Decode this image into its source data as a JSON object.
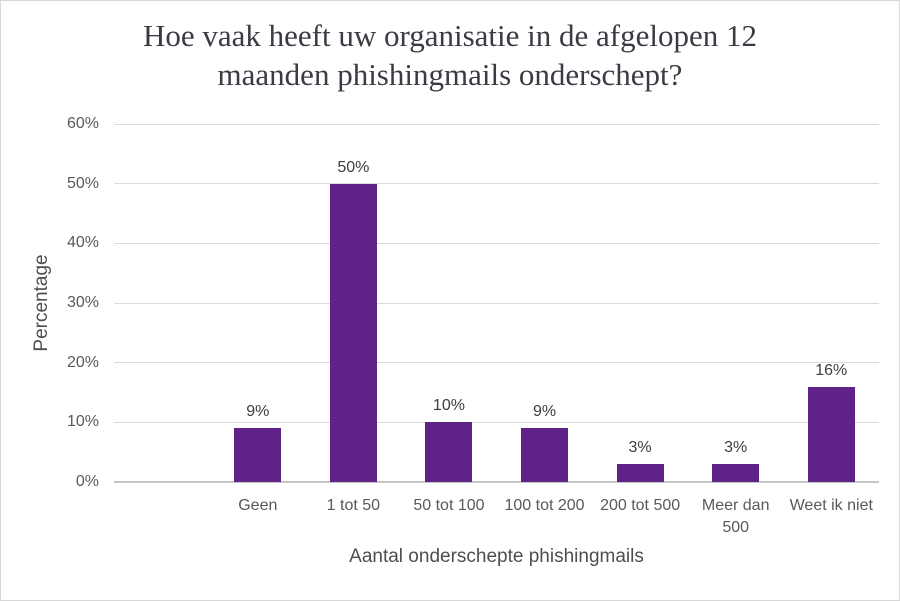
{
  "chart_data": {
    "type": "bar",
    "title": "Hoe vaak heeft uw organisatie in de afgelopen 12\nmaanden phishingmails onderschept?",
    "categories": [
      "Geen",
      "1 tot 50",
      "50 tot 100",
      "100 tot 200",
      "200 tot 500",
      "Meer dan\n500",
      "Weet ik niet"
    ],
    "values": [
      9,
      50,
      10,
      9,
      3,
      3,
      16
    ],
    "value_labels": [
      "9%",
      "50%",
      "10%",
      "9%",
      "3%",
      "3%",
      "16%"
    ],
    "xlabel": "Aantal onderschepte phishingmails",
    "ylabel": "Percentage",
    "ylim": [
      0,
      60
    ],
    "yticks": [
      0,
      10,
      20,
      30,
      40,
      50,
      60
    ],
    "ytick_labels": [
      "0%",
      "10%",
      "20%",
      "30%",
      "40%",
      "50%",
      "60%"
    ],
    "grid": "horizontal",
    "legend": "none"
  },
  "colors": {
    "bar": "#5f2287",
    "title_text": "#3c3b45",
    "axis_text": "#595959",
    "grid_line": "#dadada",
    "baseline": "#c6c6c6",
    "frame_border": "#d8d8d8",
    "background": "#ffffff"
  }
}
